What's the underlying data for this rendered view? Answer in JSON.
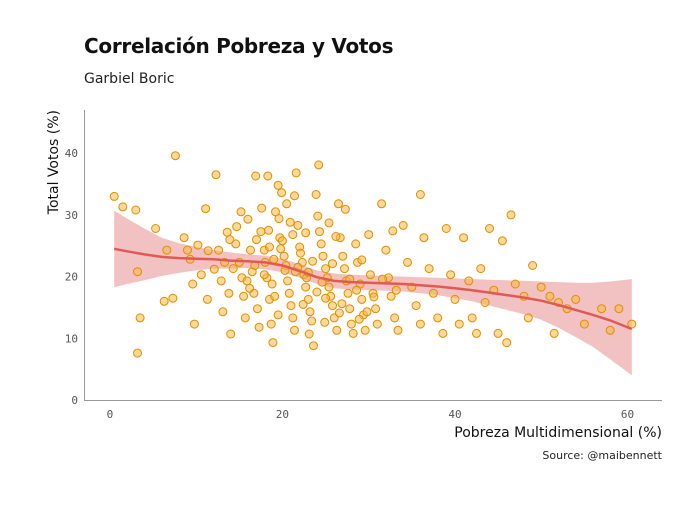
{
  "header": {
    "title": "Correlación Pobreza y Votos",
    "subtitle": "Garbiel Boric",
    "caption": "Source: @maibennett"
  },
  "colors": {
    "point_fill": "#f5b947",
    "point_stroke": "#e38d00",
    "smooth_line": "#e05a55",
    "ribbon": "#eba0a0",
    "axis": "#999999"
  },
  "chart_data": {
    "type": "scatter",
    "xlabel": "Pobreza Multidimensional (%)",
    "ylabel": "Total Votos (%)",
    "xlim": [
      -3,
      64
    ],
    "ylim": [
      0,
      47
    ],
    "xticks": [
      "0",
      "20",
      "40",
      "60"
    ],
    "yticks": [
      "0",
      "10",
      "20",
      "30",
      "40"
    ],
    "grid": false,
    "points": [
      [
        0.5,
        33
      ],
      [
        1.5,
        31.3
      ],
      [
        3,
        30.8
      ],
      [
        3.2,
        20.8
      ],
      [
        3.5,
        13.3
      ],
      [
        3.2,
        7.6
      ],
      [
        5.3,
        27.8
      ],
      [
        6.3,
        16
      ],
      [
        6.6,
        24.3
      ],
      [
        7.3,
        16.5
      ],
      [
        7.6,
        39.6
      ],
      [
        8.6,
        26.3
      ],
      [
        9,
        24.3
      ],
      [
        9.3,
        22.8
      ],
      [
        9.6,
        18.8
      ],
      [
        9.8,
        12.3
      ],
      [
        10.6,
        20.3
      ],
      [
        11.3,
        16.3
      ],
      [
        11.1,
        31
      ],
      [
        11.4,
        24.2
      ],
      [
        12.3,
        36.5
      ],
      [
        12.6,
        24.3
      ],
      [
        12.9,
        19.3
      ],
      [
        13.1,
        14.3
      ],
      [
        13.3,
        22.3
      ],
      [
        13.6,
        27.2
      ],
      [
        13.8,
        17.3
      ],
      [
        14,
        10.7
      ],
      [
        14.3,
        21.3
      ],
      [
        14.6,
        25.3
      ],
      [
        15.2,
        30.5
      ],
      [
        15,
        22.3
      ],
      [
        15.3,
        19.8
      ],
      [
        15.5,
        16.8
      ],
      [
        15.7,
        13.3
      ],
      [
        16,
        29.3
      ],
      [
        16.3,
        24.3
      ],
      [
        16.5,
        20.8
      ],
      [
        16.7,
        17.3
      ],
      [
        17.1,
        14.8
      ],
      [
        17.3,
        11.8
      ],
      [
        17.5,
        27.3
      ],
      [
        17.9,
        24.3
      ],
      [
        18,
        22.3
      ],
      [
        18.2,
        19.8
      ],
      [
        18.5,
        16.3
      ],
      [
        18.7,
        12.3
      ],
      [
        18.9,
        9.3
      ],
      [
        19.2,
        30.5
      ],
      [
        19.5,
        34.8
      ],
      [
        19.7,
        26.3
      ],
      [
        20,
        25.8
      ],
      [
        20.2,
        23.3
      ],
      [
        20.4,
        21.8
      ],
      [
        20.6,
        19.3
      ],
      [
        20.8,
        17.3
      ],
      [
        21,
        15.3
      ],
      [
        21.2,
        13.3
      ],
      [
        21.4,
        11.3
      ],
      [
        21.6,
        36.8
      ],
      [
        21.8,
        28.3
      ],
      [
        22,
        24.8
      ],
      [
        22.3,
        22.3
      ],
      [
        22.5,
        20.3
      ],
      [
        22.7,
        18.3
      ],
      [
        23,
        16.3
      ],
      [
        23.2,
        14.3
      ],
      [
        23.4,
        12.8
      ],
      [
        23.6,
        8.8
      ],
      [
        23.9,
        33.3
      ],
      [
        24.1,
        29.8
      ],
      [
        24.3,
        27.3
      ],
      [
        24.5,
        25.3
      ],
      [
        24.7,
        23.3
      ],
      [
        25,
        21.3
      ],
      [
        25.2,
        19.8
      ],
      [
        25.4,
        18.3
      ],
      [
        25.6,
        16.8
      ],
      [
        25.8,
        15.3
      ],
      [
        26,
        13.3
      ],
      [
        26.3,
        11.3
      ],
      [
        26.5,
        31.8
      ],
      [
        26.7,
        26.3
      ],
      [
        27,
        23.3
      ],
      [
        27.2,
        21.3
      ],
      [
        27.4,
        19.3
      ],
      [
        27.6,
        17.3
      ],
      [
        27.8,
        14.8
      ],
      [
        28,
        12.3
      ],
      [
        28.2,
        10.8
      ],
      [
        28.5,
        25.3
      ],
      [
        28.7,
        22.3
      ],
      [
        29,
        18.8
      ],
      [
        29.2,
        16.3
      ],
      [
        29.4,
        13.8
      ],
      [
        29.6,
        11.3
      ],
      [
        30,
        26.8
      ],
      [
        30.2,
        20.3
      ],
      [
        30.5,
        17.3
      ],
      [
        30.8,
        14.8
      ],
      [
        31,
        12.3
      ],
      [
        31.5,
        31.8
      ],
      [
        32,
        24.3
      ],
      [
        32.3,
        19.8
      ],
      [
        32.6,
        16.8
      ],
      [
        33,
        13.3
      ],
      [
        33.4,
        11.3
      ],
      [
        34,
        28.3
      ],
      [
        34.5,
        22.3
      ],
      [
        35,
        18.3
      ],
      [
        35.5,
        15.3
      ],
      [
        36,
        12.3
      ],
      [
        36,
        33.3
      ],
      [
        36.4,
        26.3
      ],
      [
        37,
        21.3
      ],
      [
        37.5,
        17.3
      ],
      [
        38,
        13.3
      ],
      [
        38.6,
        10.8
      ],
      [
        39,
        27.8
      ],
      [
        39.5,
        20.3
      ],
      [
        40,
        16.3
      ],
      [
        40.5,
        12.3
      ],
      [
        41,
        26.3
      ],
      [
        41.6,
        19.3
      ],
      [
        42,
        13.3
      ],
      [
        42.5,
        10.8
      ],
      [
        43,
        21.3
      ],
      [
        43.5,
        15.8
      ],
      [
        44,
        27.8
      ],
      [
        44.5,
        17.8
      ],
      [
        45,
        10.8
      ],
      [
        45.5,
        25.8
      ],
      [
        46,
        9.3
      ],
      [
        46.5,
        30
      ],
      [
        47,
        18.8
      ],
      [
        48,
        16.8
      ],
      [
        48.5,
        13.3
      ],
      [
        49,
        21.8
      ],
      [
        50,
        18.3
      ],
      [
        51,
        16.8
      ],
      [
        51.5,
        10.8
      ],
      [
        52,
        15.8
      ],
      [
        53,
        14.8
      ],
      [
        54,
        16.3
      ],
      [
        55,
        12.3
      ],
      [
        57,
        14.8
      ],
      [
        58,
        11.3
      ],
      [
        59,
        14.8
      ],
      [
        60.5,
        12.3
      ],
      [
        17,
        26
      ],
      [
        18.4,
        27.5
      ],
      [
        19,
        22.8
      ],
      [
        19.8,
        24.5
      ],
      [
        21.2,
        26.8
      ],
      [
        20.5,
        31.8
      ],
      [
        22.8,
        19.8
      ],
      [
        24,
        17.5
      ],
      [
        25,
        16.5
      ],
      [
        21.5,
        20.8
      ],
      [
        19.5,
        13.8
      ],
      [
        18.8,
        18.8
      ],
      [
        16.8,
        21.8
      ],
      [
        15.9,
        19.3
      ],
      [
        22.1,
        23.8
      ],
      [
        23.5,
        22.5
      ],
      [
        26.2,
        26.5
      ],
      [
        25.8,
        22.1
      ],
      [
        27.8,
        19.6
      ],
      [
        29.8,
        14.3
      ],
      [
        30.6,
        16.7
      ],
      [
        26.9,
        15.6
      ],
      [
        23,
        20.7
      ],
      [
        20.3,
        21
      ],
      [
        21.8,
        21.5
      ],
      [
        24.6,
        19.1
      ],
      [
        17.9,
        20.3
      ],
      [
        19.1,
        16.8
      ],
      [
        22.4,
        15.5
      ],
      [
        16.2,
        18.1
      ],
      [
        28.6,
        17.8
      ],
      [
        20.9,
        28.8
      ],
      [
        18.5,
        24.8
      ],
      [
        17.6,
        31.1
      ],
      [
        19.9,
        33.6
      ],
      [
        21.4,
        33.1
      ],
      [
        25.4,
        28.7
      ],
      [
        22.7,
        27.1
      ],
      [
        26.6,
        14.1
      ],
      [
        24.9,
        12.6
      ],
      [
        28.9,
        13.1
      ],
      [
        31.6,
        19.6
      ],
      [
        33.2,
        17.8
      ],
      [
        27.3,
        30.9
      ],
      [
        23.1,
        10.7
      ],
      [
        13.9,
        26
      ],
      [
        12.1,
        21.2
      ],
      [
        10.2,
        25.1
      ],
      [
        14.7,
        28.1
      ],
      [
        16.9,
        36.3
      ],
      [
        18.3,
        36.3
      ],
      [
        19.6,
        29.4
      ],
      [
        24.2,
        38.1
      ],
      [
        29.2,
        22.7
      ],
      [
        32.8,
        27.4
      ]
    ],
    "smooth": [
      [
        0.5,
        24.5
      ],
      [
        2,
        24.1
      ],
      [
        4,
        23.6
      ],
      [
        6,
        23.2
      ],
      [
        8,
        23.0
      ],
      [
        10,
        22.9
      ],
      [
        12,
        22.8
      ],
      [
        14,
        22.6
      ],
      [
        16,
        22.5
      ],
      [
        18,
        22.3
      ],
      [
        20,
        21.8
      ],
      [
        22,
        20.9
      ],
      [
        24,
        19.9
      ],
      [
        26,
        19.3
      ],
      [
        28,
        19.1
      ],
      [
        30,
        19.0
      ],
      [
        32,
        18.9
      ],
      [
        34,
        18.8
      ],
      [
        36,
        18.6
      ],
      [
        38,
        18.4
      ],
      [
        40,
        18.1
      ],
      [
        42,
        17.8
      ],
      [
        44,
        17.4
      ],
      [
        46,
        17.0
      ],
      [
        48,
        16.6
      ],
      [
        50,
        16.1
      ],
      [
        52,
        15.4
      ],
      [
        54,
        14.6
      ],
      [
        56,
        13.8
      ],
      [
        58,
        12.9
      ],
      [
        60.5,
        11.5
      ]
    ],
    "ribbon_upper": [
      [
        0.5,
        30.7
      ],
      [
        2,
        29.4
      ],
      [
        4,
        27.8
      ],
      [
        6,
        26.3
      ],
      [
        8,
        25.4
      ],
      [
        10,
        24.8
      ],
      [
        12,
        24.3
      ],
      [
        14,
        23.9
      ],
      [
        16,
        23.6
      ],
      [
        18,
        23.4
      ],
      [
        20,
        22.9
      ],
      [
        22,
        22.0
      ],
      [
        24,
        21.0
      ],
      [
        26,
        20.5
      ],
      [
        28,
        20.3
      ],
      [
        30,
        20.2
      ],
      [
        32,
        20.1
      ],
      [
        34,
        20.0
      ],
      [
        36,
        19.9
      ],
      [
        38,
        19.8
      ],
      [
        40,
        19.7
      ],
      [
        42,
        19.6
      ],
      [
        44,
        19.5
      ],
      [
        46,
        19.4
      ],
      [
        48,
        19.3
      ],
      [
        50,
        19.2
      ],
      [
        52,
        19.1
      ],
      [
        54,
        19.0
      ],
      [
        56,
        19.0
      ],
      [
        58,
        19.2
      ],
      [
        60.5,
        19.6
      ]
    ],
    "ribbon_lower": [
      [
        0.5,
        18.3
      ],
      [
        2,
        18.8
      ],
      [
        4,
        19.4
      ],
      [
        6,
        20.1
      ],
      [
        8,
        20.6
      ],
      [
        10,
        21.0
      ],
      [
        12,
        21.3
      ],
      [
        14,
        21.3
      ],
      [
        16,
        21.4
      ],
      [
        18,
        21.2
      ],
      [
        20,
        20.7
      ],
      [
        22,
        19.8
      ],
      [
        24,
        18.8
      ],
      [
        26,
        18.1
      ],
      [
        28,
        17.9
      ],
      [
        30,
        17.8
      ],
      [
        32,
        17.7
      ],
      [
        34,
        17.6
      ],
      [
        36,
        17.3
      ],
      [
        38,
        17.0
      ],
      [
        40,
        16.5
      ],
      [
        42,
        16.0
      ],
      [
        44,
        15.3
      ],
      [
        46,
        14.6
      ],
      [
        48,
        13.9
      ],
      [
        50,
        13.0
      ],
      [
        52,
        11.7
      ],
      [
        54,
        10.2
      ],
      [
        56,
        8.6
      ],
      [
        58,
        6.6
      ],
      [
        60.5,
        4.0
      ]
    ]
  }
}
